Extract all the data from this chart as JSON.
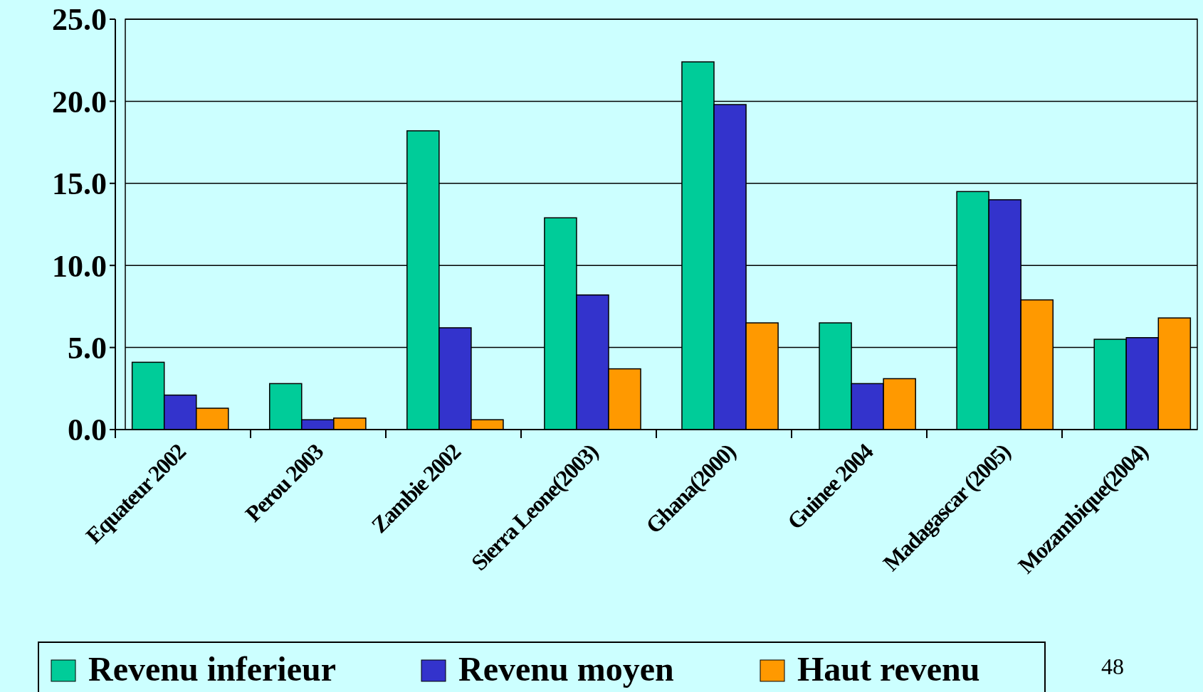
{
  "chart_data": {
    "type": "bar",
    "categories": [
      "Equateur 2002",
      "Perou 2003",
      "Zambie 2002",
      "Sierra Leone(2003)",
      "Ghana(2000)",
      "Guinee 2004",
      "Madagascar (2005)",
      "Mozambique(2004)"
    ],
    "series": [
      {
        "name": "Revenu inferieur",
        "color": "#00cc99",
        "values": [
          4.1,
          2.8,
          18.2,
          12.9,
          22.4,
          6.5,
          14.5,
          5.5
        ]
      },
      {
        "name": "Revenu moyen",
        "color": "#3333cc",
        "values": [
          2.1,
          0.6,
          6.2,
          8.2,
          19.8,
          2.8,
          14.0,
          5.6
        ]
      },
      {
        "name": "Haut revenu",
        "color": "#ff9900",
        "values": [
          1.3,
          0.7,
          0.6,
          3.7,
          6.5,
          3.1,
          7.9,
          6.8
        ]
      }
    ],
    "ylim": [
      0,
      25
    ],
    "yticks": [
      {
        "value": 0,
        "label": "0.0"
      },
      {
        "value": 5,
        "label": "5.0"
      },
      {
        "value": 10,
        "label": "10.0"
      },
      {
        "value": 15,
        "label": "15.0"
      },
      {
        "value": 20,
        "label": "20.0"
      },
      {
        "value": 25,
        "label": "25.0"
      }
    ],
    "grid": "y",
    "legend": "bottom",
    "annotations": [
      "48"
    ]
  }
}
